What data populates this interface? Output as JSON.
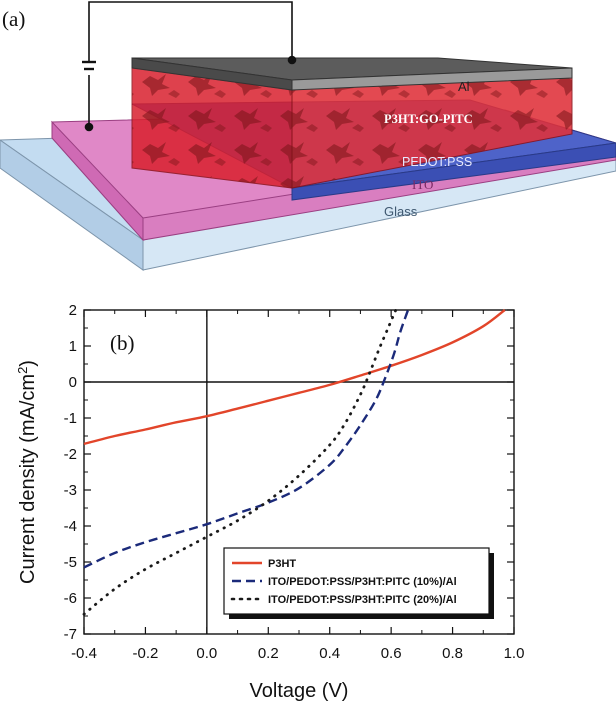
{
  "panel_a": {
    "label": "(a)",
    "layers": {
      "al": "Al",
      "active": "P3HT:GO-PITC",
      "pedot": "PEDOT:PSS",
      "ito": "ITO",
      "glass": "Glass"
    }
  },
  "panel_b_label": "(b)",
  "colors": {
    "p3ht": "#e2452a",
    "pitc10": "#1b2a7a",
    "pitc20": "#1a1a1a"
  },
  "chart_data": {
    "type": "line",
    "xlabel": "Voltage (V)",
    "ylabel": "Current density (mA/cm",
    "ylabel_sup": "2",
    "ylabel_close": ")",
    "xlim": [
      -0.4,
      1.0
    ],
    "ylim": [
      -7,
      2
    ],
    "x_ticks": [
      "-0.4",
      "-0.2",
      "0.0",
      "0.2",
      "0.4",
      "0.6",
      "0.8",
      "1.0"
    ],
    "y_ticks": [
      "-7",
      "-6",
      "-5",
      "-4",
      "-3",
      "-2",
      "-1",
      "0",
      "1",
      "2"
    ],
    "legend_position": "bottom-right",
    "series": [
      {
        "name": "P3HT",
        "style": "solid",
        "points": [
          [
            -0.4,
            -1.72
          ],
          [
            -0.3,
            -1.5
          ],
          [
            -0.2,
            -1.32
          ],
          [
            -0.1,
            -1.12
          ],
          [
            0.0,
            -0.95
          ],
          [
            0.1,
            -0.74
          ],
          [
            0.2,
            -0.52
          ],
          [
            0.3,
            -0.3
          ],
          [
            0.4,
            -0.08
          ],
          [
            0.5,
            0.18
          ],
          [
            0.6,
            0.45
          ],
          [
            0.7,
            0.75
          ],
          [
            0.8,
            1.1
          ],
          [
            0.9,
            1.55
          ],
          [
            0.97,
            2.0
          ]
        ]
      },
      {
        "name": "ITO/PEDOT:PSS/P3HT:PITC (10%)/Al",
        "style": "dashed",
        "points": [
          [
            -0.4,
            -5.15
          ],
          [
            -0.3,
            -4.75
          ],
          [
            -0.2,
            -4.45
          ],
          [
            -0.1,
            -4.2
          ],
          [
            0.0,
            -3.95
          ],
          [
            0.1,
            -3.65
          ],
          [
            0.2,
            -3.35
          ],
          [
            0.3,
            -2.95
          ],
          [
            0.4,
            -2.3
          ],
          [
            0.45,
            -1.8
          ],
          [
            0.5,
            -1.2
          ],
          [
            0.55,
            -0.5
          ],
          [
            0.58,
            0.1
          ],
          [
            0.61,
            0.8
          ],
          [
            0.63,
            1.4
          ],
          [
            0.655,
            2.0
          ]
        ]
      },
      {
        "name": "ITO/PEDOT:PSS/P3HT:PITC (20%)/Al",
        "style": "dotted",
        "points": [
          [
            -0.4,
            -6.45
          ],
          [
            -0.3,
            -5.75
          ],
          [
            -0.2,
            -5.2
          ],
          [
            -0.1,
            -4.75
          ],
          [
            0.0,
            -4.3
          ],
          [
            0.1,
            -3.85
          ],
          [
            0.2,
            -3.3
          ],
          [
            0.3,
            -2.6
          ],
          [
            0.4,
            -1.75
          ],
          [
            0.45,
            -1.15
          ],
          [
            0.5,
            -0.35
          ],
          [
            0.53,
            0.25
          ],
          [
            0.56,
            0.9
          ],
          [
            0.59,
            1.5
          ],
          [
            0.615,
            2.0
          ]
        ]
      }
    ]
  }
}
